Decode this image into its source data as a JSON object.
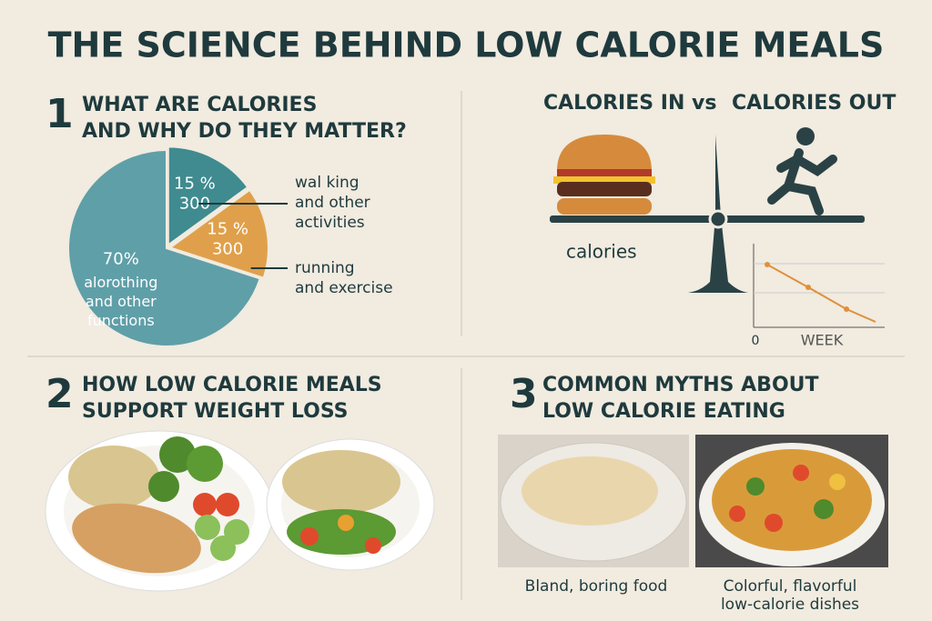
{
  "title": "THE SCIENCE BEHIND LOW CALORIE MEALS",
  "section1": {
    "number": "1",
    "heading": [
      "WHAT ARE CALORIES",
      "AND WHY DO THEY MATTER?"
    ]
  },
  "chart_data": {
    "type": "pie",
    "values": [
      70,
      15,
      15
    ],
    "value_labels": [
      "70%",
      "15 %",
      "15 %"
    ],
    "colors": [
      "#5f9fa8",
      "#3f8b8f",
      "#e0a04b"
    ],
    "amounts": [
      null,
      "300",
      "300"
    ],
    "slice_texts": [
      [
        "alorothing",
        "and other",
        "functions"
      ],
      [
        "wal king",
        "and other",
        "activities"
      ],
      [
        "running",
        "and exercise"
      ]
    ]
  },
  "balance": {
    "left": "CALORIES IN vs",
    "right": "CALORIES OUT",
    "caption": "calories",
    "axis_zero": "0",
    "axis_label": "WEEK"
  },
  "section2": {
    "number": "2",
    "heading": [
      "HOW LOW CALORIE MEALS",
      "SUPPORT WEIGHT LOSS"
    ]
  },
  "section3": {
    "number": "3",
    "heading": [
      "COMMON MYTHS ABOUT",
      "LOW CALORIE EATING"
    ],
    "captions": [
      [
        "Bland, boring food"
      ],
      [
        "Colorful, flavorful",
        "low-calorie dishes"
      ]
    ]
  }
}
